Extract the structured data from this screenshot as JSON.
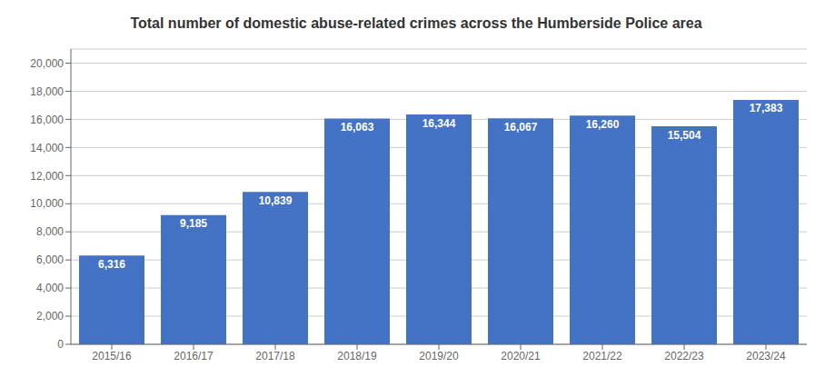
{
  "chart_data": {
    "type": "bar",
    "title": "Total number of domestic abuse-related crimes across the Humberside Police area",
    "categories": [
      "2015/16",
      "2016/17",
      "2017/18",
      "2018/19",
      "2019/20",
      "2020/21",
      "2021/22",
      "2022/23",
      "2023/24"
    ],
    "values": [
      6316,
      9185,
      10839,
      16063,
      16344,
      16067,
      16260,
      15504,
      17383
    ],
    "value_labels": [
      "6,316",
      "9,185",
      "10,839",
      "16,063",
      "16,344",
      "16,067",
      "16,260",
      "15,504",
      "17,383"
    ],
    "data_labels": true,
    "color": "#4472C4",
    "ylim": [
      0,
      21000
    ],
    "yticks": [
      0,
      {
        "value": 2000,
        "label": "2,000"
      },
      {
        "value": 4000,
        "label": "4,000"
      },
      {
        "value": 6000,
        "label": "6,000"
      },
      {
        "value": 8000,
        "label": "8,000"
      },
      {
        "value": 10000,
        "label": "10,000"
      },
      {
        "value": 12000,
        "label": "12,000"
      },
      {
        "value": 14000,
        "label": "14,000"
      },
      {
        "value": 16000,
        "label": "16,000"
      },
      {
        "value": 18000,
        "label": "18,000"
      },
      {
        "value": 20000,
        "label": "20,000"
      }
    ],
    "grid": true
  }
}
